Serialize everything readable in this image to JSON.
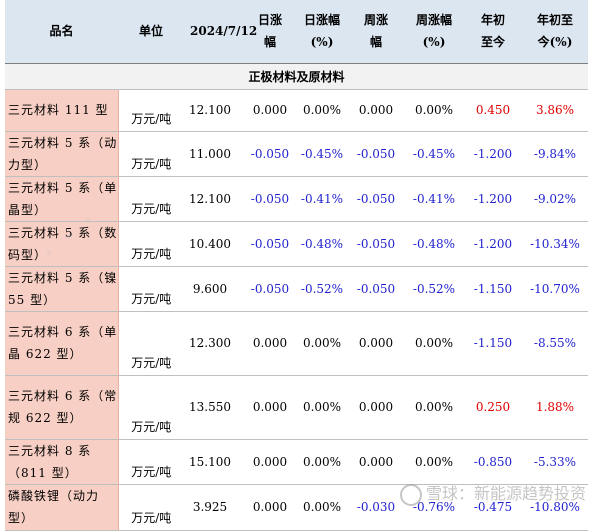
{
  "header": {
    "name": "品名",
    "unit": "单位",
    "date": "2024/7/12",
    "day_change": "日涨幅",
    "day_pct": "日涨幅(%)",
    "week_change": "周涨幅",
    "week_pct": "周涨幅(%)",
    "ytd": "年初至今",
    "ytd_pct": "年初至今(%)"
  },
  "section_title": "正极材料及原材料",
  "rows": [
    {
      "name": "三元材料 111 型",
      "unit": "万元/吨",
      "price": "12.100",
      "day": "0.000",
      "day_pct": "0.00%",
      "week": "0.000",
      "week_pct": "0.00%",
      "ytd": "0.450",
      "ytd_pct": "3.86%"
    },
    {
      "name": "三元材料 5 系（动力型）",
      "unit": "万元/吨",
      "price": "11.000",
      "day": "-0.050",
      "day_pct": "-0.45%",
      "week": "-0.050",
      "week_pct": "-0.45%",
      "ytd": "-1.200",
      "ytd_pct": "-9.84%"
    },
    {
      "name": "三元材料 5 系（单晶型）",
      "unit": "万元/吨",
      "price": "12.100",
      "day": "-0.050",
      "day_pct": "-0.41%",
      "week": "-0.050",
      "week_pct": "-0.41%",
      "ytd": "-1.200",
      "ytd_pct": "-9.02%"
    },
    {
      "name": "三元材料 5 系（数码型）",
      "unit": "万元/吨",
      "price": "10.400",
      "day": "-0.050",
      "day_pct": "-0.48%",
      "week": "-0.050",
      "week_pct": "-0.48%",
      "ytd": "-1.200",
      "ytd_pct": "-10.34%"
    },
    {
      "name": "三元材料 5 系（镍 55 型）",
      "unit": "万元/吨",
      "price": "9.600",
      "day": "-0.050",
      "day_pct": "-0.52%",
      "week": "-0.050",
      "week_pct": "-0.52%",
      "ytd": "-1.150",
      "ytd_pct": "-10.70%"
    },
    {
      "name": "三元材料 6 系（单晶 622 型）",
      "unit": "万元/吨",
      "price": "12.300",
      "day": "0.000",
      "day_pct": "0.00%",
      "week": "0.000",
      "week_pct": "0.00%",
      "ytd": "-1.150",
      "ytd_pct": "-8.55%"
    },
    {
      "name": "三元材料 6 系（常规 622 型）",
      "unit": "万元/吨",
      "price": "13.550",
      "day": "0.000",
      "day_pct": "0.00%",
      "week": "0.000",
      "week_pct": "0.00%",
      "ytd": "0.250",
      "ytd_pct": "1.88%"
    },
    {
      "name": "三元材料 8 系（811 型）",
      "unit": "万元/吨",
      "price": "15.100",
      "day": "0.000",
      "day_pct": "0.00%",
      "week": "0.000",
      "week_pct": "0.00%",
      "ytd": "-0.850",
      "ytd_pct": "-5.33%"
    },
    {
      "name": "磷酸铁锂（动力型）",
      "unit": "万元/吨",
      "price": "3.925",
      "day": "0.000",
      "day_pct": "0.00%",
      "week": "-0.030",
      "week_pct": "-0.76%",
      "ytd": "-0.475",
      "ytd_pct": "-10.80%"
    }
  ],
  "watermark": "雪球：新能源趋势投资",
  "colors": {
    "header_bg": "#dce6f1",
    "name_bg": "#f7cfc4",
    "negative": "#1f1fcf",
    "positive": "#e00000"
  }
}
